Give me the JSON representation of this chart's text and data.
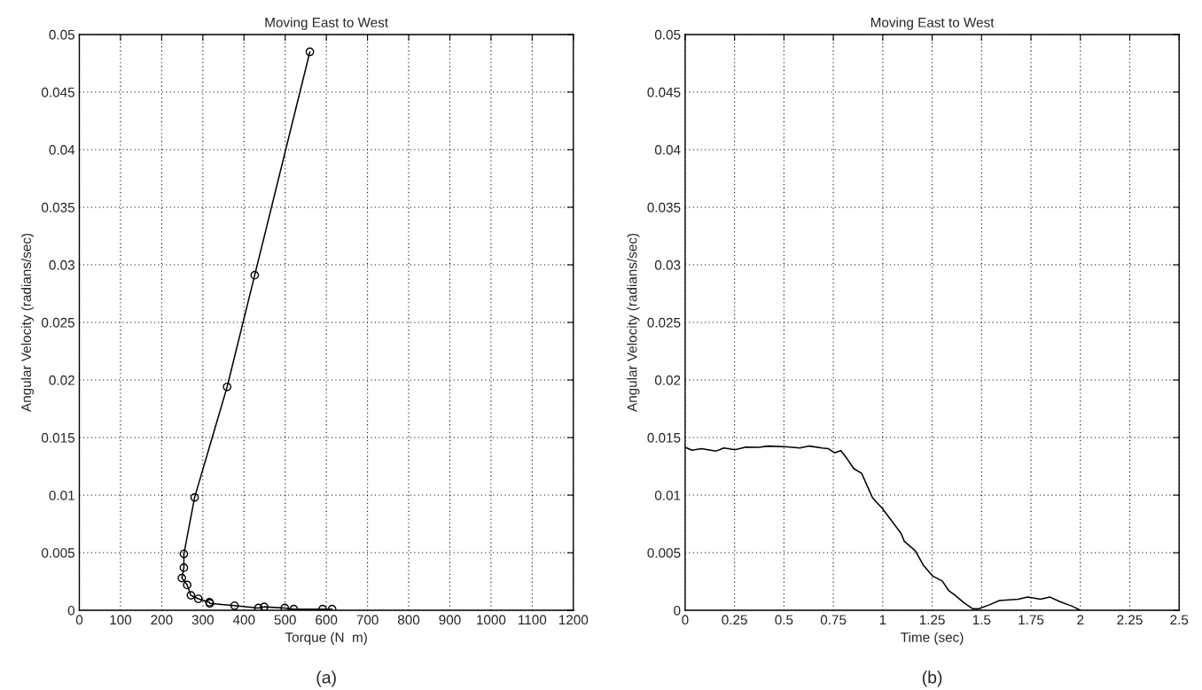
{
  "chart_data": [
    {
      "type": "line",
      "title": "Moving East to West",
      "xlabel": "Torque (N  m)",
      "ylabel": "Angular Velocity (radians/sec)",
      "annotations": [
        "(a)"
      ],
      "series": [
        {
          "color": "#000000",
          "marker": "circle",
          "x": [
            560,
            426,
            359,
            280,
            254,
            254,
            249,
            262,
            271,
            289,
            316,
            317,
            377,
            435,
            449,
            499,
            521,
            591,
            614
          ],
          "values": [
            0.0485,
            0.0291,
            0.0194,
            0.0098,
            0.0049,
            0.0037,
            0.0028,
            0.0022,
            0.0013,
            0.001,
            0.0007,
            0.0006,
            0.0004,
            0.0002,
            0.0003,
            0.0002,
            0.0001,
            0.0001,
            0.0001
          ]
        }
      ],
      "xlim": [
        0,
        1200
      ],
      "xticks": [
        0,
        100,
        200,
        300,
        400,
        500,
        600,
        700,
        800,
        900,
        1000,
        1100,
        1200
      ],
      "ylim": [
        0,
        0.05
      ],
      "yticks": [
        0,
        0.005,
        0.01,
        0.015,
        0.02,
        0.025,
        0.03,
        0.035,
        0.04,
        0.045,
        0.05
      ],
      "grid": true,
      "line_style": "solid"
    },
    {
      "type": "line",
      "title": "Moving East to West",
      "xlabel": "Time (sec)",
      "ylabel": "Angular Velocity (radians/sec)",
      "annotations": [
        "(b)"
      ],
      "series": [
        {
          "color": "#000000",
          "marker": "none",
          "x": [
            0,
            0.035,
            0.083,
            0.155,
            0.196,
            0.252,
            0.308,
            0.372,
            0.42,
            0.516,
            0.58,
            0.628,
            0.692,
            0.724,
            0.756,
            0.788,
            0.821,
            0.853,
            0.893,
            0.925,
            0.949,
            0.997,
            1.045,
            1.093,
            1.109,
            1.165,
            1.205,
            1.253,
            1.301,
            1.333,
            1.365,
            1.413,
            1.454,
            1.486,
            1.542,
            1.59,
            1.686,
            1.734,
            1.798,
            1.846,
            1.894,
            1.958,
            1.998
          ],
          "values": [
            0.01415,
            0.0139,
            0.01404,
            0.01382,
            0.0141,
            0.01395,
            0.01417,
            0.01415,
            0.01426,
            0.0142,
            0.0141,
            0.01426,
            0.0141,
            0.01404,
            0.01368,
            0.01387,
            0.01313,
            0.01231,
            0.0119,
            0.01066,
            0.00975,
            0.00887,
            0.00777,
            0.00668,
            0.00599,
            0.00516,
            0.00393,
            0.00297,
            0.00255,
            0.00173,
            0.00132,
            0.00063,
            0.00014,
            0.00014,
            0.00049,
            0.00085,
            0.00096,
            0.00115,
            0.00096,
            0.00115,
            0.00077,
            0.00036,
            3e-05
          ]
        }
      ],
      "xlim": [
        0,
        2.5
      ],
      "xticks": [
        0,
        0.25,
        0.5,
        0.75,
        1,
        1.25,
        1.5,
        1.75,
        2,
        2.25,
        2.5
      ],
      "ylim": [
        0,
        0.05
      ],
      "yticks": [
        0,
        0.005,
        0.01,
        0.015,
        0.02,
        0.025,
        0.03,
        0.035,
        0.04,
        0.045,
        0.05
      ],
      "grid": true,
      "line_style": "solid"
    }
  ]
}
